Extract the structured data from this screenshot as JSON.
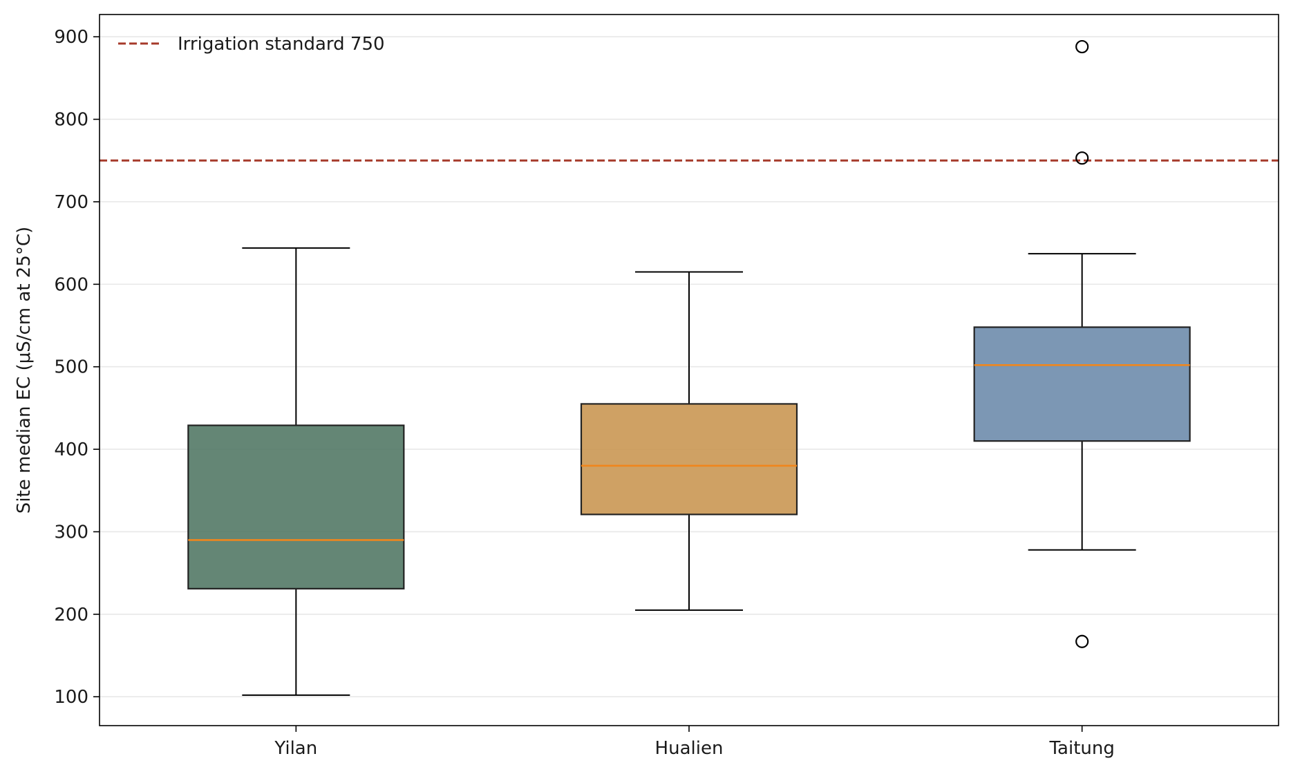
{
  "chart_data": {
    "type": "box",
    "title": "",
    "xlabel": "",
    "ylabel": "Site median EC (μS/cm at 25°C)",
    "ylim": [
      65,
      927
    ],
    "yticks": [
      100,
      200,
      300,
      400,
      500,
      600,
      700,
      800,
      900
    ],
    "grid": "y",
    "legend_position": "top-left",
    "categories": [
      "Yilan",
      "Hualien",
      "Taitung"
    ],
    "boxes": [
      {
        "category": "Yilan",
        "whisker_low": 102,
        "q1": 231,
        "median": 290,
        "q3": 429,
        "whisker_high": 644,
        "outliers": [],
        "color": "#4f7562"
      },
      {
        "category": "Hualien",
        "whisker_low": 205,
        "q1": 321,
        "median": 380,
        "q3": 455,
        "whisker_high": 615,
        "outliers": [],
        "color": "#c8944f"
      },
      {
        "category": "Taitung",
        "whisker_low": 278,
        "q1": 410,
        "median": 502,
        "q3": 548,
        "whisker_high": 637,
        "outliers": [
          888,
          753,
          167
        ],
        "color": "#6a89aa"
      }
    ],
    "reference_line": {
      "label": "Irrigation standard 750",
      "value": 750,
      "color": "#a63a2a"
    },
    "median_color": "#f0861c"
  }
}
